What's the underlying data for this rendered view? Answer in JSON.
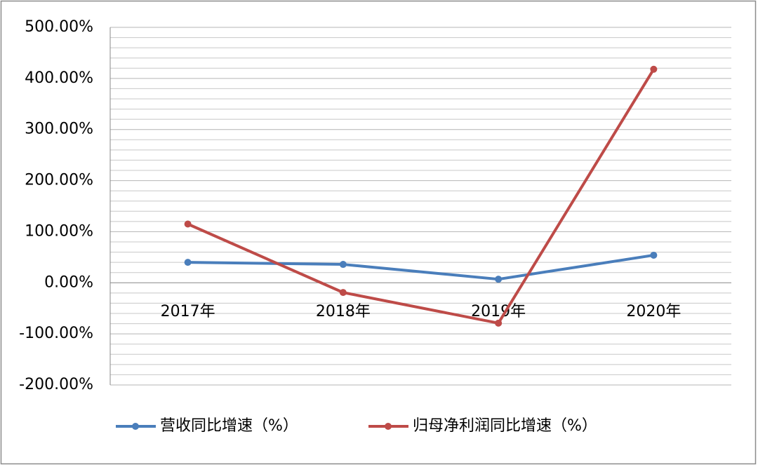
{
  "chart_data": {
    "type": "line",
    "categories": [
      "2017年",
      "2018年",
      "2019年",
      "2020年"
    ],
    "series": [
      {
        "name": "营收同比增速（%）",
        "color": "#4a7ebb",
        "values": [
          40,
          36,
          7,
          54
        ]
      },
      {
        "name": "归母净利润同比增速（%）",
        "color": "#be4b48",
        "values": [
          115,
          -19,
          -79,
          418
        ]
      }
    ],
    "ylim": [
      -200,
      500
    ],
    "yticks": [
      {
        "value": -200,
        "label": "-200.00%"
      },
      {
        "value": -100,
        "label": "-100.00%"
      },
      {
        "value": 0,
        "label": "0.00%"
      },
      {
        "value": 100,
        "label": "100.00%"
      },
      {
        "value": 200,
        "label": "200.00%"
      },
      {
        "value": 300,
        "label": "300.00%"
      },
      {
        "value": 400,
        "label": "400.00%"
      },
      {
        "value": 500,
        "label": "500.00%"
      }
    ],
    "minor_yticks": [
      -180,
      -160,
      -140,
      -120,
      -80,
      -60,
      -40,
      -20,
      20,
      40,
      60,
      80,
      120,
      140,
      160,
      180,
      220,
      240,
      260,
      280,
      320,
      340,
      360,
      380,
      420,
      440,
      460,
      480
    ],
    "grid": true,
    "legend": "bottom"
  }
}
